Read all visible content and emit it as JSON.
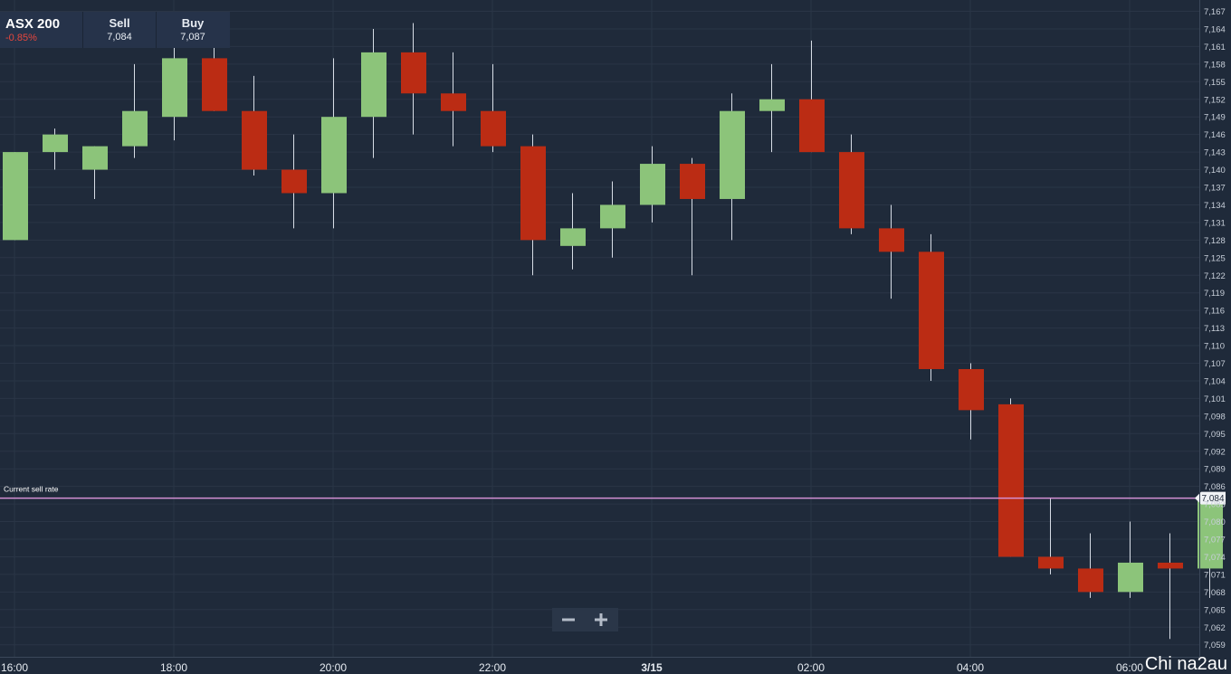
{
  "header": {
    "symbol": "ASX 200",
    "change": "-0.85%",
    "sell_label": "Sell",
    "sell_value": "7,084",
    "buy_label": "Buy",
    "buy_value": "7,087"
  },
  "zoom": {
    "out_icon": "minus-icon",
    "in_icon": "plus-icon"
  },
  "watermark": "Chi na2au",
  "colors": {
    "background": "#1f2a3a",
    "up": "#8cc47a",
    "down": "#bb2c14",
    "current_line": "#d490d4",
    "grid": "#2a3546"
  },
  "chart_data": {
    "type": "candlestick",
    "y_ticks": [
      "7,167",
      "7,164",
      "7,161",
      "7,158",
      "7,155",
      "7,152",
      "7,149",
      "7,146",
      "7,143",
      "7,140",
      "7,137",
      "7,134",
      "7,131",
      "7,128",
      "7,125",
      "7,122",
      "7,119",
      "7,116",
      "7,113",
      "7,110",
      "7,107",
      "7,104",
      "7,101",
      "7,098",
      "7,095",
      "7,092",
      "7,089",
      "7,086",
      "7,083",
      "7,080",
      "7,077",
      "7,074",
      "7,071",
      "7,068",
      "7,065",
      "7,062",
      "7,059"
    ],
    "ylim": [
      7058,
      7168
    ],
    "x_ticks": [
      {
        "x": 0,
        "label": "16:00"
      },
      {
        "x": 4,
        "label": "18:00"
      },
      {
        "x": 8,
        "label": "20:00"
      },
      {
        "x": 12,
        "label": "22:00"
      },
      {
        "x": 16,
        "label": "3/15"
      },
      {
        "x": 20,
        "label": "02:00"
      },
      {
        "x": 24,
        "label": "04:00"
      },
      {
        "x": 28,
        "label": "06:00"
      }
    ],
    "candles": [
      {
        "o": 7128,
        "h": 7143,
        "l": 7128,
        "c": 7143
      },
      {
        "o": 7143,
        "h": 7147,
        "l": 7140,
        "c": 7146
      },
      {
        "o": 7140,
        "h": 7144,
        "l": 7135,
        "c": 7144
      },
      {
        "o": 7144,
        "h": 7158,
        "l": 7142,
        "c": 7150
      },
      {
        "o": 7149,
        "h": 7162,
        "l": 7145,
        "c": 7159
      },
      {
        "o": 7159,
        "h": 7162,
        "l": 7150,
        "c": 7150
      },
      {
        "o": 7150,
        "h": 7156,
        "l": 7139,
        "c": 7140
      },
      {
        "o": 7140,
        "h": 7146,
        "l": 7130,
        "c": 7136
      },
      {
        "o": 7136,
        "h": 7159,
        "l": 7130,
        "c": 7149
      },
      {
        "o": 7149,
        "h": 7164,
        "l": 7142,
        "c": 7160
      },
      {
        "o": 7160,
        "h": 7165,
        "l": 7146,
        "c": 7153
      },
      {
        "o": 7153,
        "h": 7160,
        "l": 7144,
        "c": 7150
      },
      {
        "o": 7150,
        "h": 7158,
        "l": 7143,
        "c": 7144
      },
      {
        "o": 7144,
        "h": 7146,
        "l": 7122,
        "c": 7128
      },
      {
        "o": 7127,
        "h": 7136,
        "l": 7123,
        "c": 7130
      },
      {
        "o": 7130,
        "h": 7138,
        "l": 7125,
        "c": 7134
      },
      {
        "o": 7134,
        "h": 7144,
        "l": 7131,
        "c": 7141
      },
      {
        "o": 7141,
        "h": 7142,
        "l": 7122,
        "c": 7135
      },
      {
        "o": 7135,
        "h": 7153,
        "l": 7128,
        "c": 7150
      },
      {
        "o": 7150,
        "h": 7158,
        "l": 7143,
        "c": 7152
      },
      {
        "o": 7152,
        "h": 7162,
        "l": 7143,
        "c": 7143
      },
      {
        "o": 7143,
        "h": 7146,
        "l": 7129,
        "c": 7130
      },
      {
        "o": 7130,
        "h": 7134,
        "l": 7118,
        "c": 7126
      },
      {
        "o": 7126,
        "h": 7129,
        "l": 7104,
        "c": 7106
      },
      {
        "o": 7106,
        "h": 7107,
        "l": 7094,
        "c": 7099
      },
      {
        "o": 7100,
        "h": 7101,
        "l": 7074,
        "c": 7074
      },
      {
        "o": 7074,
        "h": 7084,
        "l": 7071,
        "c": 7072
      },
      {
        "o": 7072,
        "h": 7078,
        "l": 7067,
        "c": 7068
      },
      {
        "o": 7068,
        "h": 7080,
        "l": 7067,
        "c": 7073
      },
      {
        "o": 7073,
        "h": 7078,
        "l": 7060,
        "c": 7072
      },
      {
        "o": 7072,
        "h": 7085,
        "l": 7067,
        "c": 7084
      }
    ],
    "current_line": {
      "label": "Current sell rate",
      "value": 7084,
      "tag": "7,084"
    }
  }
}
